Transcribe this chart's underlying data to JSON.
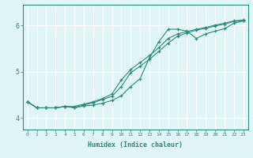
{
  "xlabel": "Humidex (Indice chaleur)",
  "x": [
    0,
    1,
    2,
    3,
    4,
    5,
    6,
    7,
    8,
    9,
    10,
    11,
    12,
    13,
    14,
    15,
    16,
    17,
    18,
    19,
    20,
    21,
    22,
    23
  ],
  "line1": [
    4.35,
    4.22,
    4.22,
    4.22,
    4.25,
    4.22,
    4.26,
    4.28,
    4.32,
    4.38,
    4.48,
    4.68,
    4.85,
    5.3,
    5.65,
    5.92,
    5.92,
    5.88,
    5.72,
    5.82,
    5.88,
    5.93,
    6.05,
    6.1
  ],
  "line2": [
    4.35,
    4.22,
    4.22,
    4.22,
    4.25,
    4.25,
    4.3,
    4.35,
    4.42,
    4.52,
    4.82,
    5.05,
    5.2,
    5.35,
    5.52,
    5.72,
    5.82,
    5.87,
    5.92,
    5.96,
    6.01,
    6.05,
    6.1,
    6.12
  ],
  "line3": [
    4.35,
    4.22,
    4.22,
    4.22,
    4.25,
    4.23,
    4.28,
    4.33,
    4.4,
    4.47,
    4.68,
    4.98,
    5.12,
    5.27,
    5.44,
    5.62,
    5.77,
    5.84,
    5.9,
    5.94,
    5.99,
    6.03,
    6.09,
    6.11
  ],
  "line_color": "#2e8b7a",
  "bg_color": "#e0f5f5",
  "grid_color": "#ffffff",
  "ylim": [
    3.75,
    6.45
  ],
  "xlim": [
    -0.5,
    23.5
  ],
  "yticks": [
    4,
    5,
    6
  ],
  "xticks": [
    0,
    1,
    2,
    3,
    4,
    5,
    6,
    7,
    8,
    9,
    10,
    11,
    12,
    13,
    14,
    15,
    16,
    17,
    18,
    19,
    20,
    21,
    22,
    23
  ]
}
